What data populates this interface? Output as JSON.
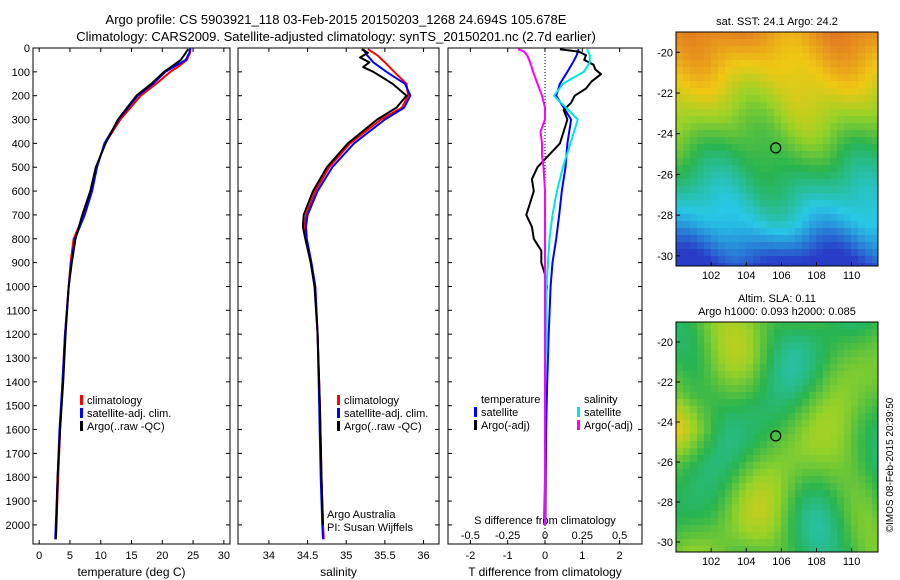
{
  "header": {
    "title_line1": "Argo profile: CS 5903921_118 03-Feb-2015 20150203_1268 24.694S 105.678E",
    "title_line2": "Climatology: CARS2009. Satellite-adjusted climatology: synTS_20150201.nc (2.7d earlier)"
  },
  "credits": {
    "org": "Argo Australia",
    "pi": "PI: Susan Wijffels",
    "stamp": "©IMOS 08-Feb-2015 20:39:50"
  },
  "colors": {
    "climatology": "#ff0000",
    "satellite_adj": "#0000ff",
    "argo": "#000000",
    "satellite_salinity": "#00e5e5",
    "argo_salinity_adj": "#ff00ff"
  },
  "legends": {
    "temp": [
      "climatology",
      "satellite-adj. clim.",
      "Argo(..raw -QC)"
    ],
    "sal": [
      "climatology",
      "satellite-adj. clim.",
      "Argo(..raw -QC)"
    ],
    "diff_head_temp": "temperature",
    "diff_head_sal": "salinity",
    "diff_temp": [
      "satellite",
      "Argo(-adj)"
    ],
    "diff_sal": [
      "satellite",
      "Argo(-adj)"
    ]
  },
  "maps": {
    "sst_title": "sat. SST: 24.1  Argo: 24.2",
    "sla_title_line1": "Altim. SLA: 0.11",
    "sla_title_line2": "Argo h1000: 0.093 h2000: 0.085",
    "lat_ticks": [
      -20,
      -22,
      -24,
      -26,
      -28,
      -30
    ],
    "lon_ticks": [
      102,
      104,
      106,
      108,
      110
    ],
    "xlim": [
      100,
      111.5
    ],
    "ylim": [
      -30.5,
      -19
    ],
    "argo_position": {
      "lon": 105.678,
      "lat": -24.694
    }
  },
  "chart_data": [
    {
      "type": "line",
      "xlabel": "temperature (deg C)",
      "ylabel": "",
      "xlim": [
        -1,
        31
      ],
      "ylim": [
        2080,
        0
      ],
      "xticks": [
        0,
        5,
        10,
        15,
        20,
        25,
        30
      ],
      "yticks": [
        0,
        100,
        200,
        300,
        400,
        500,
        600,
        700,
        800,
        900,
        1000,
        1100,
        1200,
        1300,
        1400,
        1500,
        1600,
        1700,
        1800,
        1900,
        2000
      ],
      "series": [
        {
          "name": "climatology",
          "color": "#ff0000",
          "depth": [
            0,
            20,
            50,
            80,
            100,
            150,
            200,
            300,
            400,
            500,
            600,
            700,
            800,
            900,
            1000,
            1200,
            1400,
            1600,
            1800,
            2000,
            2060
          ],
          "values": [
            24.6,
            24.5,
            24,
            22.5,
            21.3,
            19,
            16.5,
            13.2,
            10.7,
            9.3,
            8.5,
            7.3,
            5.6,
            5.1,
            4.8,
            4.2,
            3.8,
            3.4,
            3.1,
            2.8,
            2.7
          ]
        },
        {
          "name": "satellite-adj. clim.",
          "color": "#0000ff",
          "depth": [
            0,
            20,
            50,
            80,
            100,
            150,
            200,
            300,
            400,
            500,
            600,
            700,
            800,
            900,
            1000,
            1200,
            1400,
            1600,
            1800,
            2000,
            2060
          ],
          "values": [
            24.5,
            24.4,
            23.8,
            21.8,
            20.5,
            18.5,
            16,
            12.9,
            10.6,
            9.4,
            8.6,
            7.4,
            5.8,
            5.2,
            4.8,
            4.2,
            3.8,
            3.3,
            3,
            2.7,
            2.6
          ]
        },
        {
          "name": "Argo(..raw -QC)",
          "color": "#000000",
          "depth": [
            5,
            20,
            50,
            80,
            100,
            150,
            200,
            300,
            400,
            500,
            600,
            700,
            800,
            900,
            1000,
            1200,
            1400,
            1600,
            1800,
            2000,
            2060
          ],
          "values": [
            24.2,
            23.8,
            23,
            21.4,
            20.3,
            18.2,
            15.8,
            12.8,
            10.8,
            9.2,
            8.3,
            7,
            5.9,
            5.3,
            4.8,
            4.3,
            3.9,
            3.4,
            3,
            2.8,
            2.7
          ]
        }
      ]
    },
    {
      "type": "line",
      "xlabel": "salinity",
      "ylabel": "",
      "xlim": [
        33.6,
        36.2
      ],
      "ylim": [
        2080,
        0
      ],
      "xticks": [
        34,
        34.5,
        35,
        35.5,
        36
      ],
      "series": [
        {
          "name": "climatology",
          "color": "#ff0000",
          "depth": [
            5,
            30,
            60,
            100,
            150,
            200,
            250,
            300,
            400,
            500,
            600,
            700,
            750,
            800,
            900,
            1000,
            1200,
            1500,
            1800,
            2000,
            2060
          ],
          "values": [
            35.28,
            35.4,
            35.5,
            35.62,
            35.78,
            35.8,
            35.72,
            35.45,
            35.05,
            34.78,
            34.6,
            34.48,
            34.46,
            34.48,
            34.55,
            34.6,
            34.63,
            34.66,
            34.68,
            34.7,
            34.71
          ]
        },
        {
          "name": "satellite-adj. clim.",
          "color": "#0000ff",
          "depth": [
            5,
            30,
            60,
            100,
            150,
            200,
            250,
            300,
            400,
            500,
            600,
            700,
            750,
            800,
            900,
            1000,
            1200,
            1500,
            1800,
            2000,
            2060
          ],
          "values": [
            35.22,
            35.27,
            35.35,
            35.52,
            35.76,
            35.83,
            35.75,
            35.5,
            35.1,
            34.82,
            34.63,
            34.5,
            34.48,
            34.49,
            34.55,
            34.6,
            34.63,
            34.65,
            34.67,
            34.69,
            34.7
          ]
        },
        {
          "name": "Argo(..raw -QC)",
          "color": "#000000",
          "depth": [
            5,
            20,
            40,
            60,
            80,
            100,
            150,
            200,
            250,
            300,
            400,
            500,
            600,
            700,
            750,
            800,
            900,
            1000,
            1200,
            1500,
            1800,
            2000
          ],
          "values": [
            35.2,
            35.28,
            35.18,
            35.3,
            35.22,
            35.35,
            35.6,
            35.78,
            35.65,
            35.4,
            35.02,
            34.75,
            34.57,
            34.45,
            34.44,
            34.47,
            34.54,
            34.59,
            34.63,
            34.66,
            34.68,
            34.7
          ]
        }
      ]
    },
    {
      "type": "line",
      "xlabel": "T difference from climatology",
      "top_xlabel": "S difference from climatology",
      "ylabel": "",
      "xlim": [
        -2.6,
        2.6
      ],
      "ylim": [
        2080,
        0
      ],
      "xticks": [
        -2,
        -1,
        0,
        1,
        2
      ],
      "top_xticks": [
        -0.5,
        -0.25,
        0,
        0.25,
        0.5
      ],
      "top_ticklabels": [
        "-0.5",
        "-0.25",
        "0",
        "0.25",
        "0.5"
      ],
      "series": [
        {
          "name": "temperature satellite",
          "color": "#0000ff",
          "depth": [
            5,
            30,
            60,
            100,
            150,
            200,
            300,
            400,
            500,
            600,
            700,
            800,
            900,
            1000,
            1200,
            1400,
            1600,
            1800,
            2000
          ],
          "values": [
            0.9,
            0.85,
            0.75,
            0.6,
            0.4,
            0.3,
            0.7,
            0.6,
            0.55,
            0.45,
            0.38,
            0.3,
            0.2,
            0.15,
            0.1,
            0.06,
            0.03,
            0.02,
            0.01
          ]
        },
        {
          "name": "temperature Argo(-adj)",
          "color": "#000000",
          "depth": [
            5,
            15,
            30,
            50,
            70,
            90,
            110,
            140,
            170,
            200,
            230,
            260,
            300,
            350,
            400,
            450,
            500,
            550,
            600,
            650,
            700,
            750,
            800,
            850,
            900,
            950,
            1000,
            1100,
            1200,
            1400,
            1600,
            1800,
            2000
          ],
          "values": [
            0.4,
            0.9,
            1.1,
            1.05,
            1.3,
            1.35,
            1.5,
            1.25,
            1.1,
            0.8,
            0.7,
            0.5,
            0.6,
            0.5,
            0.4,
            0.1,
            -0.2,
            -0.35,
            -0.3,
            -0.4,
            -0.5,
            -0.35,
            -0.3,
            -0.1,
            -0.1,
            0.0,
            0.05,
            0.0,
            0.0,
            0.0,
            0.0,
            0.0,
            -0.02
          ]
        },
        {
          "name": "salinity satellite",
          "color": "#00e5e5",
          "depth": [
            5,
            30,
            60,
            100,
            150,
            200,
            300,
            400,
            500,
            600,
            700,
            800,
            900,
            1000,
            1200,
            1400,
            1600,
            1800,
            2000
          ],
          "values": [
            0.28,
            0.3,
            0.3,
            0.26,
            0.12,
            0.06,
            0.22,
            0.17,
            0.12,
            0.08,
            0.05,
            0.03,
            0.02,
            0.01,
            0.01,
            0.0,
            0.0,
            0.0,
            0.0
          ]
        },
        {
          "name": "salinity Argo(-adj)",
          "color": "#ff00ff",
          "depth": [
            5,
            15,
            30,
            60,
            100,
            150,
            200,
            250,
            300,
            350,
            400,
            450,
            500,
            600,
            700,
            800,
            900,
            1000,
            1200,
            1500,
            2000
          ],
          "values": [
            -0.18,
            -0.14,
            -0.12,
            -0.1,
            -0.08,
            -0.05,
            -0.02,
            0.0,
            0.0,
            -0.03,
            -0.02,
            -0.02,
            -0.01,
            0.0,
            0.0,
            0.0,
            0.0,
            0.0,
            0.0,
            0.0,
            0.0
          ]
        }
      ]
    }
  ]
}
